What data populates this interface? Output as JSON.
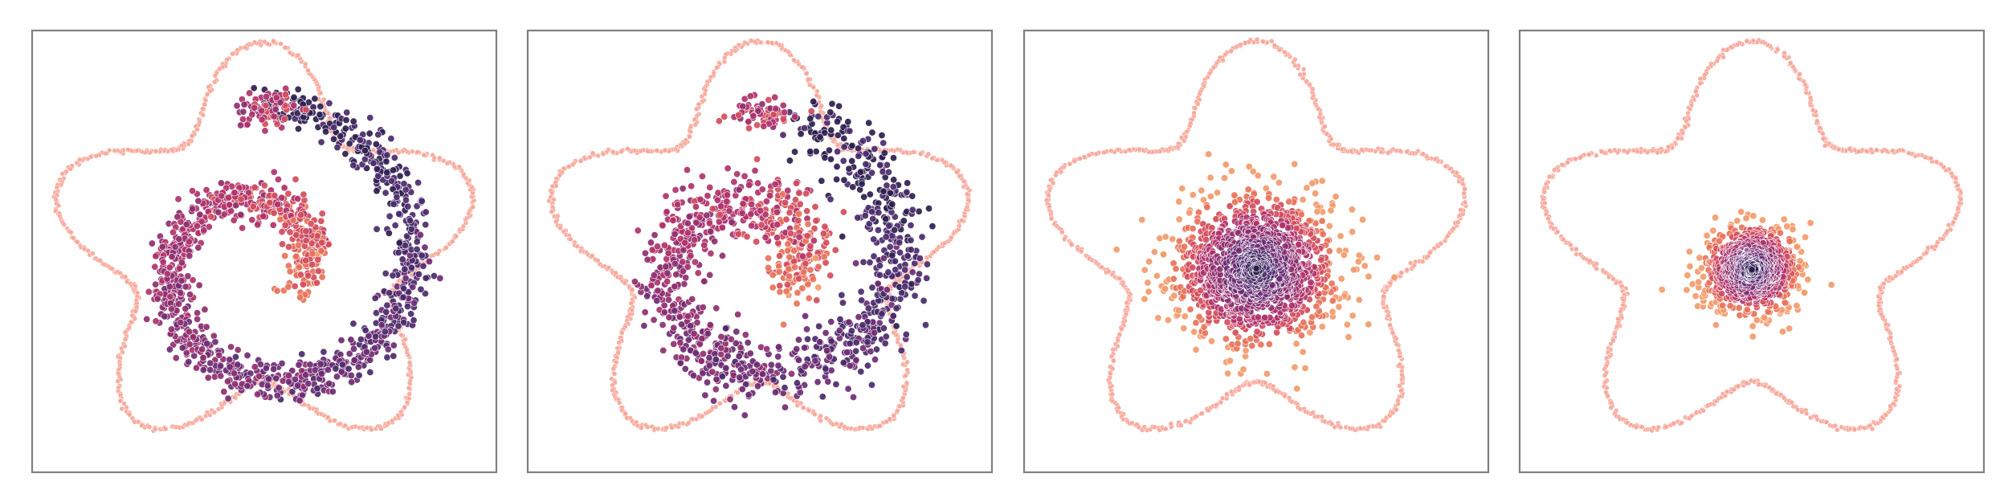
{
  "colors": {
    "boundary": "#f7a598",
    "boundary_light": "#fcd3cc",
    "frame": "#808080",
    "palette_magma": [
      "#2d1e4f",
      "#4b2a6b",
      "#6e2b73",
      "#8f2f6f",
      "#b0336a",
      "#d24d5c",
      "#e7735a",
      "#f29b6c"
    ]
  },
  "chart_data": [
    {
      "type": "scatter",
      "title": "",
      "xlabel": "",
      "ylabel": "",
      "grid": false,
      "xlim": [
        -3.1,
        3.1
      ],
      "ylim": [
        -3.05,
        3.05
      ],
      "boundary": {
        "shape": "five-petal star",
        "r_base": 2.35,
        "r_amp": 0.55,
        "petals": 5,
        "rotation_deg": 90
      },
      "distribution": {
        "kind": "spiral",
        "turns": 1.35,
        "r_inner": 0.45,
        "r_outer": 2.3,
        "noise": 0.14,
        "n": 1300
      }
    },
    {
      "type": "scatter",
      "title": "",
      "xlabel": "",
      "ylabel": "",
      "grid": false,
      "xlim": [
        -3.1,
        3.1
      ],
      "ylim": [
        -3.05,
        3.05
      ],
      "boundary": {
        "shape": "five-petal star",
        "r_base": 2.35,
        "r_amp": 0.55,
        "petals": 5,
        "rotation_deg": 90
      },
      "distribution": {
        "kind": "spiral",
        "turns": 1.3,
        "r_inner": 0.4,
        "r_outer": 2.1,
        "noise": 0.22,
        "n": 1200
      }
    },
    {
      "type": "scatter",
      "title": "",
      "xlabel": "",
      "ylabel": "",
      "grid": false,
      "xlim": [
        -3.1,
        3.1
      ],
      "ylim": [
        -3.05,
        3.05
      ],
      "boundary": {
        "shape": "five-petal star",
        "r_base": 2.35,
        "r_amp": 0.55,
        "petals": 5,
        "rotation_deg": 90
      },
      "distribution": {
        "kind": "blob",
        "center": [
          0.0,
          -0.25
        ],
        "spread": 0.55,
        "n": 1400
      }
    },
    {
      "type": "scatter",
      "title": "",
      "xlabel": "",
      "ylabel": "",
      "grid": false,
      "xlim": [
        -3.1,
        3.1
      ],
      "ylim": [
        -3.05,
        3.05
      ],
      "boundary": {
        "shape": "five-petal star",
        "r_base": 2.35,
        "r_amp": 0.55,
        "petals": 5,
        "rotation_deg": 90
      },
      "distribution": {
        "kind": "blob",
        "center": [
          0.0,
          -0.25
        ],
        "spread": 0.32,
        "n": 900
      }
    }
  ]
}
